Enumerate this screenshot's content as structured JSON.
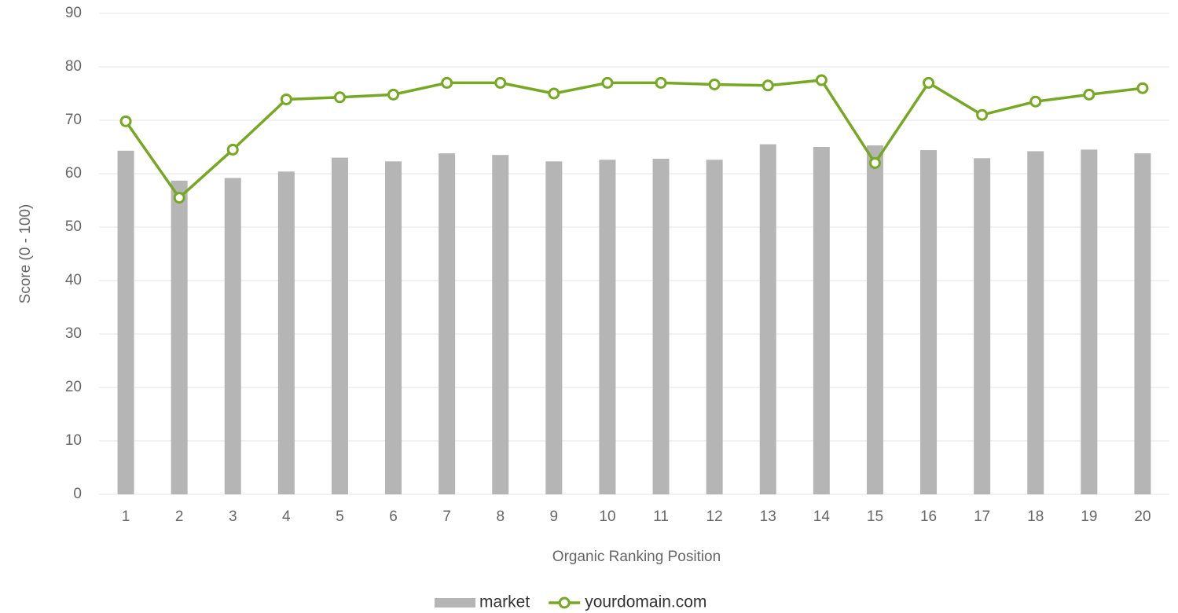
{
  "chart_data": {
    "type": "bar_line",
    "y_label": "Score (0 - 100)",
    "x_label": "Organic Ranking Position",
    "categories": [
      "1",
      "2",
      "3",
      "4",
      "5",
      "6",
      "7",
      "8",
      "9",
      "10",
      "11",
      "12",
      "13",
      "14",
      "15",
      "16",
      "17",
      "18",
      "19",
      "20"
    ],
    "series": [
      {
        "name": "market",
        "type": "bar",
        "color": "#b5b5b5",
        "values": [
          64.3,
          58.7,
          59.2,
          60.4,
          63,
          62.3,
          63.8,
          63.5,
          62.3,
          62.6,
          62.8,
          62.6,
          65.5,
          65,
          65.3,
          64.4,
          62.9,
          64.2,
          64.5,
          63.8
        ]
      },
      {
        "name": "yourdomain.com",
        "type": "line",
        "color": "#76a823",
        "values": [
          69.8,
          55.5,
          64.5,
          73.9,
          74.3,
          74.8,
          77,
          77,
          75,
          77,
          77,
          76.7,
          76.5,
          77.5,
          62,
          77,
          71,
          73.5,
          74.8,
          76
        ]
      }
    ],
    "ylim": [
      0,
      90
    ],
    "yticks": [
      0,
      10,
      20,
      30,
      40,
      50,
      60,
      70,
      80,
      90
    ],
    "grid": true,
    "legend": "bottom"
  }
}
